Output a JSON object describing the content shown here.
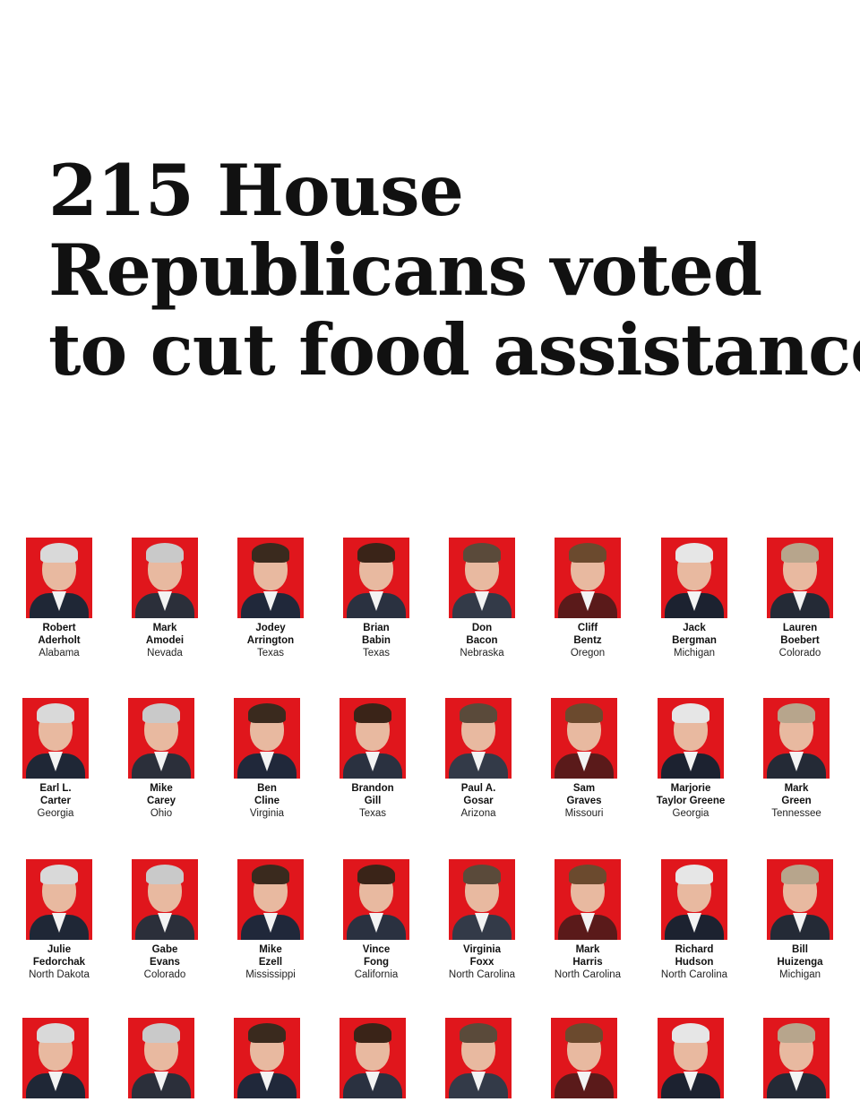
{
  "headline": [
    "215 House",
    "Republicans voted",
    "to cut food assistance"
  ],
  "members": [
    {
      "first": "Robert",
      "last": "Aderholt",
      "state": "Alabama"
    },
    {
      "first": "Mark",
      "last": "Amodei",
      "state": "Nevada"
    },
    {
      "first": "Jodey",
      "last": "Arrington",
      "state": "Texas"
    },
    {
      "first": "Brian",
      "last": "Babin",
      "state": "Texas"
    },
    {
      "first": "Don",
      "last": "Bacon",
      "state": "Nebraska"
    },
    {
      "first": "Cliff",
      "last": "Bentz",
      "state": "Oregon"
    },
    {
      "first": "Jack",
      "last": "Bergman",
      "state": "Michigan"
    },
    {
      "first": "Lauren",
      "last": "Boebert",
      "state": "Colorado"
    },
    {
      "first": "Earl L.",
      "last": "Carter",
      "state": "Georgia"
    },
    {
      "first": "Mike",
      "last": "Carey",
      "state": "Ohio"
    },
    {
      "first": "Ben",
      "last": "Cline",
      "state": "Virginia"
    },
    {
      "first": "Brandon",
      "last": "Gill",
      "state": "Texas"
    },
    {
      "first": "Paul A.",
      "last": "Gosar",
      "state": "Arizona"
    },
    {
      "first": "Sam",
      "last": "Graves",
      "state": "Missouri"
    },
    {
      "first": "Marjorie",
      "last": "Taylor Greene",
      "state": "Georgia"
    },
    {
      "first": "Mark",
      "last": "Green",
      "state": "Tennessee"
    },
    {
      "first": "Julie",
      "last": "Fedorchak",
      "state": "North Dakota"
    },
    {
      "first": "Gabe",
      "last": "Evans",
      "state": "Colorado"
    },
    {
      "first": "Mike",
      "last": "Ezell",
      "state": "Mississippi"
    },
    {
      "first": "Vince",
      "last": "Fong",
      "state": "California"
    },
    {
      "first": "Virginia",
      "last": "Foxx",
      "state": "North Carolina"
    },
    {
      "first": "Mark",
      "last": "Harris",
      "state": "North Carolina"
    },
    {
      "first": "Richard",
      "last": "Hudson",
      "state": "North Carolina"
    },
    {
      "first": "Bill",
      "last": "Huizenga",
      "state": "Michigan"
    },
    {
      "first": "",
      "last": "",
      "state": ""
    },
    {
      "first": "",
      "last": "",
      "state": ""
    },
    {
      "first": "",
      "last": "",
      "state": ""
    },
    {
      "first": "",
      "last": "",
      "state": ""
    },
    {
      "first": "",
      "last": "",
      "state": ""
    },
    {
      "first": "",
      "last": "",
      "state": ""
    },
    {
      "first": "",
      "last": "",
      "state": ""
    },
    {
      "first": "",
      "last": "",
      "state": ""
    }
  ],
  "colors": {
    "photo_bg": "#e0161c",
    "text": "#111111",
    "background": "#ffffff"
  }
}
